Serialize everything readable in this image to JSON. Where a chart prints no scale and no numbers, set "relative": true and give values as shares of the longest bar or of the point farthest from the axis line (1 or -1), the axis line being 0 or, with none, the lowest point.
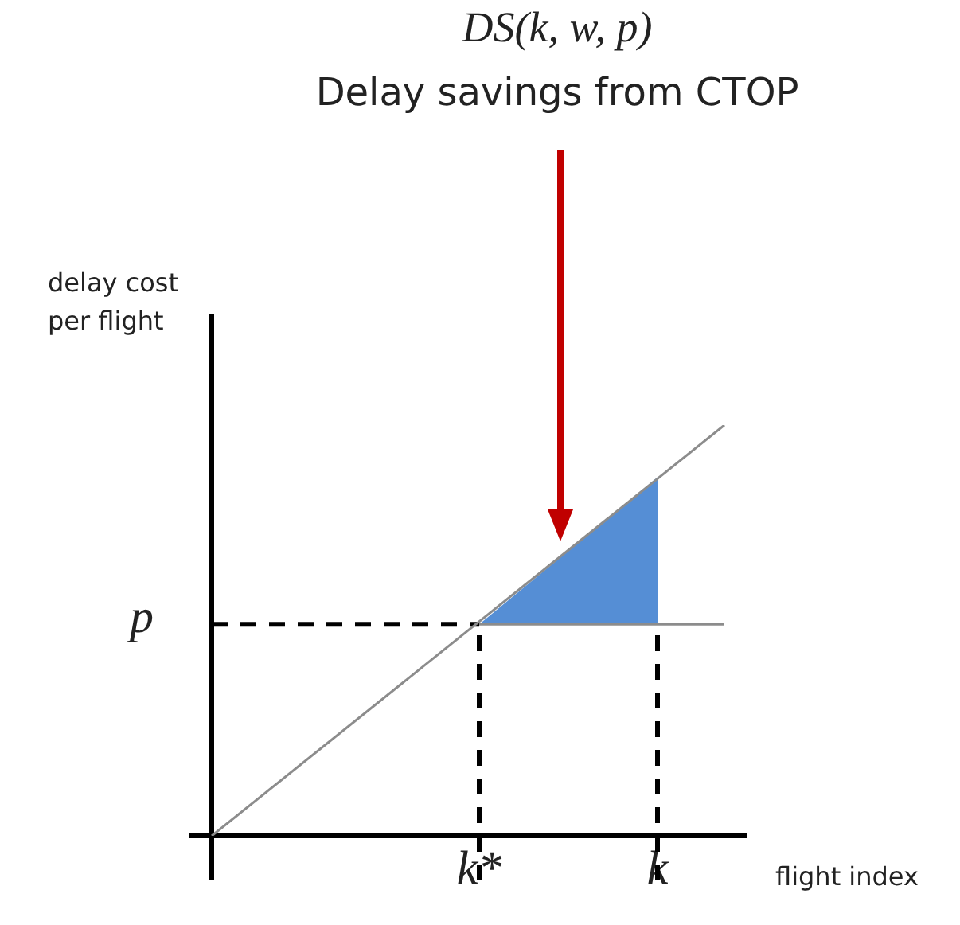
{
  "chart_data": {
    "type": "line",
    "relative": true,
    "title": "DS(k, w, p)",
    "subtitle": "Delay savings from CTOP",
    "ylabel": "delay cost per flight",
    "xlabel": "flight index",
    "categories": [
      null,
      null,
      null,
      null,
      null,
      null,
      null,
      null,
      null,
      null,
      null,
      null,
      "k*",
      null,
      null,
      null,
      null,
      null,
      null,
      null,
      "k",
      null,
      null,
      null
    ],
    "series": [
      {
        "type": "line",
        "values": [
          0,
          null,
          null,
          null,
          null,
          null,
          null,
          null,
          null,
          null,
          null,
          null,
          null,
          null,
          null,
          null,
          null,
          null,
          null,
          null,
          null,
          null,
          null,
          1
        ],
        "color": "#8c8c8c"
      },
      {
        "type": "line",
        "values": [
          null,
          null,
          null,
          null,
          null,
          null,
          null,
          null,
          null,
          null,
          null,
          null,
          0.515,
          null,
          null,
          null,
          null,
          null,
          null,
          null,
          null,
          null,
          null,
          0.515
        ],
        "color": "#8c8c8c"
      },
      {
        "type": "area",
        "values": [
          null,
          null,
          null,
          null,
          null,
          null,
          null,
          null,
          null,
          null,
          null,
          null,
          0.515,
          null,
          null,
          null,
          null,
          null,
          null,
          null,
          0.873,
          null,
          null,
          null
        ],
        "color": "#558ed5"
      }
    ],
    "ref_lines": [
      {
        "axis": "y",
        "value": 0.515,
        "label": "p",
        "color": "#000000",
        "line_style": "dashed"
      }
    ],
    "grid": "x",
    "legend": false,
    "marker": "none"
  }
}
